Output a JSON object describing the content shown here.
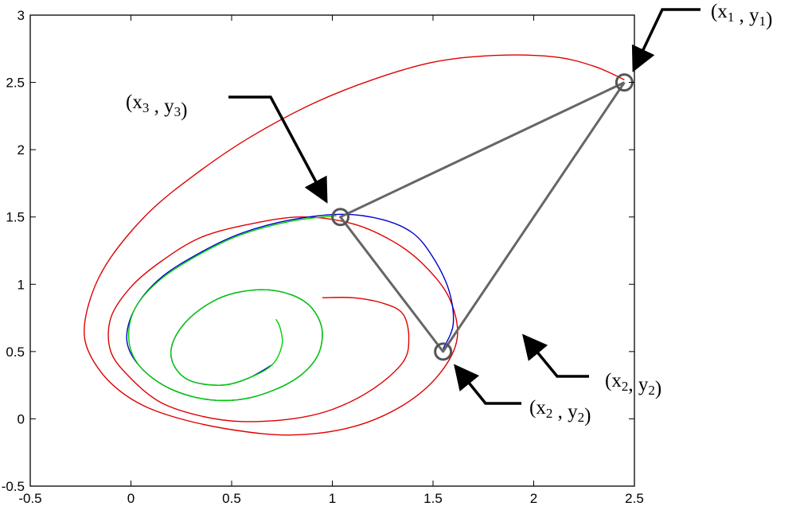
{
  "chart_data": {
    "type": "line",
    "title": "",
    "xlabel": "",
    "ylabel": "",
    "xlim": [
      -0.5,
      2.5
    ],
    "ylim": [
      -0.5,
      3
    ],
    "x_ticks": [
      -0.5,
      0,
      0.5,
      1,
      1.5,
      2,
      2.5
    ],
    "x_tick_labels": [
      "-0.5",
      "0",
      "0.5",
      "1",
      "1.5",
      "2",
      "2.5"
    ],
    "y_ticks": [
      -0.5,
      0,
      0.5,
      1,
      1.5,
      2,
      2.5,
      3
    ],
    "y_tick_labels": [
      "-0.5",
      "0",
      "0.5",
      "1",
      "1.5",
      "2",
      "2.5",
      "3"
    ],
    "grid": false,
    "series": [
      {
        "color": "#e00000",
        "x": [
          2.45,
          2.3,
          2.1,
          1.8,
          1.5,
          1.2,
          0.9,
          0.6,
          0.35,
          0.1,
          -0.1,
          -0.2,
          -0.23,
          -0.15,
          0.0,
          0.2,
          0.5,
          0.8,
          1.1,
          1.35,
          1.53,
          1.62,
          1.58,
          1.45,
          1.3,
          1.1,
          0.85,
          0.6,
          0.35,
          0.15,
          0.0,
          -0.1,
          -0.1,
          0.0,
          0.15,
          0.35,
          0.55,
          0.8,
          1.0,
          1.2,
          1.35,
          1.38,
          1.35,
          1.25,
          1.1,
          0.95
        ],
        "y": [
          2.52,
          2.62,
          2.69,
          2.7,
          2.65,
          2.52,
          2.34,
          2.1,
          1.85,
          1.55,
          1.2,
          0.9,
          0.6,
          0.35,
          0.15,
          0.02,
          -0.08,
          -0.12,
          -0.06,
          0.1,
          0.33,
          0.6,
          0.9,
          1.15,
          1.32,
          1.45,
          1.5,
          1.45,
          1.35,
          1.17,
          0.98,
          0.75,
          0.5,
          0.3,
          0.12,
          0.02,
          -0.02,
          0.0,
          0.07,
          0.22,
          0.42,
          0.6,
          0.78,
          0.86,
          0.9,
          0.9
        ]
      },
      {
        "color": "#0000d0",
        "x": [
          1.55,
          1.6,
          1.58,
          1.5,
          1.4,
          1.25,
          1.05,
          0.8,
          0.55,
          0.35,
          0.15,
          0.02,
          -0.02,
          0.05,
          0.2,
          0.4,
          0.6,
          0.8,
          0.92,
          0.95,
          0.9,
          0.8,
          0.65,
          0.48,
          0.35,
          0.25,
          0.2,
          0.22,
          0.3,
          0.45,
          0.58,
          0.7
        ],
        "y": [
          0.52,
          0.7,
          0.95,
          1.2,
          1.38,
          1.48,
          1.52,
          1.48,
          1.38,
          1.24,
          1.05,
          0.82,
          0.58,
          0.38,
          0.22,
          0.14,
          0.16,
          0.28,
          0.45,
          0.65,
          0.82,
          0.92,
          0.96,
          0.92,
          0.82,
          0.68,
          0.52,
          0.38,
          0.28,
          0.25,
          0.3,
          0.4
        ]
      },
      {
        "color": "#00d000",
        "x": [
          1.02,
          0.8,
          0.55,
          0.35,
          0.15,
          0.02,
          -0.01,
          0.05,
          0.2,
          0.4,
          0.6,
          0.8,
          0.92,
          0.95,
          0.9,
          0.8,
          0.65,
          0.48,
          0.35,
          0.25,
          0.2,
          0.22,
          0.3,
          0.45,
          0.58,
          0.7,
          0.75,
          0.74,
          0.72
        ],
        "y": [
          1.51,
          1.47,
          1.37,
          1.23,
          1.04,
          0.82,
          0.58,
          0.38,
          0.22,
          0.14,
          0.16,
          0.28,
          0.45,
          0.65,
          0.82,
          0.92,
          0.96,
          0.92,
          0.82,
          0.68,
          0.52,
          0.38,
          0.28,
          0.25,
          0.3,
          0.4,
          0.55,
          0.68,
          0.74
        ]
      }
    ],
    "triangle": {
      "color": "#666666",
      "x": [
        2.45,
        1.55,
        1.04,
        2.45
      ],
      "y": [
        2.5,
        0.5,
        1.5,
        2.5
      ]
    },
    "markers": [
      {
        "x": 2.45,
        "y": 2.5
      },
      {
        "x": 1.55,
        "y": 0.5
      },
      {
        "x": 1.04,
        "y": 1.5
      }
    ],
    "annotations": [
      {
        "base": "x",
        "sub1": "1",
        "sep": " , ",
        "base2": "y",
        "sub2": "1",
        "open": "(",
        "close": ")"
      },
      {
        "base": "x",
        "sub1": "3",
        "sep": " , ",
        "base2": "y",
        "sub2": "3",
        "open": "(",
        "close": ")"
      },
      {
        "base": "x",
        "sub1": "2",
        "sep": " , ",
        "base2": "y",
        "sub2": "2",
        "open": "(",
        "close": ")"
      },
      {
        "base": "x",
        "sub1": "2",
        "sep": ", ",
        "base2": "y",
        "sub2": "2",
        "open": "(",
        "close": ")"
      }
    ]
  }
}
